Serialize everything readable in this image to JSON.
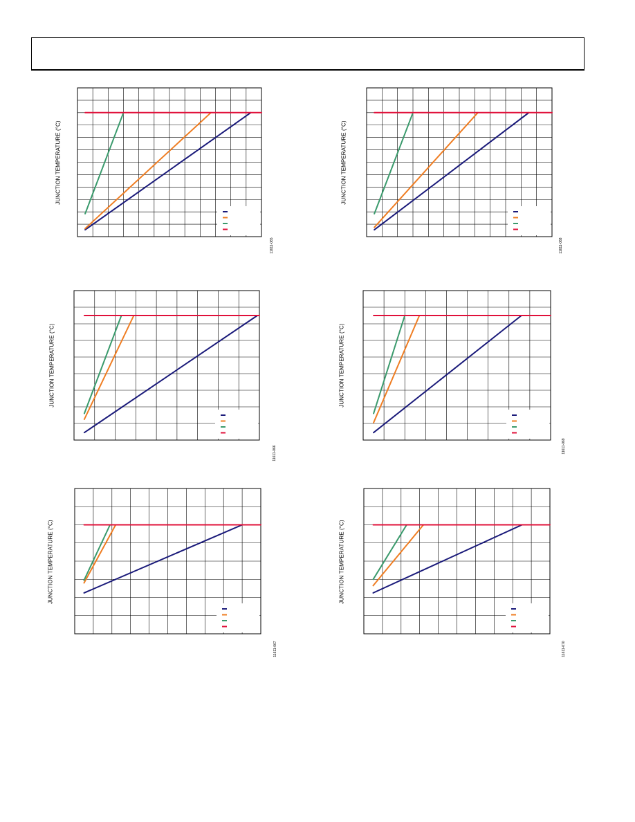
{
  "page": {
    "header": ""
  },
  "colors": {
    "blue": "#1a1a7a",
    "orange": "#ef7d22",
    "green": "#3a9a6c",
    "red": "#e0103a",
    "grid": "#000000"
  },
  "chart_data": [
    {
      "type": "line",
      "ylabel": "JUNCTION TEMPERATURE (°C)",
      "figure_code": "11611-065",
      "grid": true,
      "xlim": [
        0,
        12
      ],
      "ylim": [
        0,
        12
      ],
      "legend_position": "bottom-right",
      "series": [
        {
          "color_key": "blue",
          "x": [
            0.5,
            11.3
          ],
          "y": [
            0.55,
            10
          ]
        },
        {
          "color_key": "orange",
          "x": [
            0.5,
            8.7
          ],
          "y": [
            0.65,
            10
          ]
        },
        {
          "color_key": "green",
          "x": [
            0.5,
            3.0
          ],
          "y": [
            1.85,
            10
          ]
        },
        {
          "color_key": "red",
          "x": [
            0.5,
            12
          ],
          "y": [
            10,
            10
          ]
        }
      ]
    },
    {
      "type": "line",
      "ylabel": "JUNCTION TEMPERATURE (°C)",
      "figure_code": "11611-068",
      "grid": true,
      "xlim": [
        0,
        12
      ],
      "ylim": [
        0,
        12
      ],
      "legend_position": "bottom-right",
      "series": [
        {
          "color_key": "blue",
          "x": [
            0.5,
            10.5
          ],
          "y": [
            0.55,
            10
          ]
        },
        {
          "color_key": "orange",
          "x": [
            0.5,
            7.2
          ],
          "y": [
            0.75,
            10
          ]
        },
        {
          "color_key": "green",
          "x": [
            0.5,
            3.0
          ],
          "y": [
            1.85,
            10
          ]
        },
        {
          "color_key": "red",
          "x": [
            0.5,
            12
          ],
          "y": [
            10,
            10
          ]
        }
      ]
    },
    {
      "type": "line",
      "ylabel": "JUNCTION TEMPERATURE (°C)",
      "figure_code": "11611-066",
      "grid": true,
      "xlim": [
        0,
        9
      ],
      "ylim": [
        0,
        9
      ],
      "legend_position": "bottom-right",
      "series": [
        {
          "color_key": "blue",
          "x": [
            0.5,
            8.9
          ],
          "y": [
            0.45,
            7.5
          ]
        },
        {
          "color_key": "orange",
          "x": [
            0.5,
            1.9,
            2.9
          ],
          "y": [
            1.25,
            4.9,
            7.5
          ]
        },
        {
          "color_key": "green",
          "x": [
            0.5,
            2.3
          ],
          "y": [
            1.6,
            7.5
          ]
        },
        {
          "color_key": "red",
          "x": [
            0.5,
            9
          ],
          "y": [
            7.5,
            7.5
          ]
        }
      ]
    },
    {
      "type": "line",
      "ylabel": "JUNCTION TEMPERATURE (°C)",
      "figure_code": "11611-069",
      "grid": true,
      "xlim": [
        0,
        9
      ],
      "ylim": [
        0,
        9
      ],
      "legend_position": "bottom-right",
      "series": [
        {
          "color_key": "blue",
          "x": [
            0.5,
            7.6
          ],
          "y": [
            0.45,
            7.5
          ]
        },
        {
          "color_key": "orange",
          "x": [
            0.5,
            2.7
          ],
          "y": [
            1.05,
            7.5
          ]
        },
        {
          "color_key": "green",
          "x": [
            0.5,
            2.0
          ],
          "y": [
            1.6,
            7.5
          ]
        },
        {
          "color_key": "red",
          "x": [
            0.5,
            9
          ],
          "y": [
            7.5,
            7.5
          ]
        }
      ]
    },
    {
      "type": "line",
      "ylabel": "JUNCTION TEMPERATURE (°C)",
      "figure_code": "11611-067",
      "grid": true,
      "xlim": [
        0,
        10
      ],
      "ylim": [
        0,
        8
      ],
      "legend_position": "bottom-right",
      "series": [
        {
          "color_key": "blue",
          "x": [
            0.5,
            9.0
          ],
          "y": [
            2.25,
            6.0
          ]
        },
        {
          "color_key": "orange",
          "x": [
            0.5,
            2.2
          ],
          "y": [
            2.8,
            6.0
          ]
        },
        {
          "color_key": "green",
          "x": [
            0.5,
            1.9
          ],
          "y": [
            2.95,
            6.0
          ]
        },
        {
          "color_key": "red",
          "x": [
            0.5,
            10
          ],
          "y": [
            6.0,
            6.0
          ]
        }
      ]
    },
    {
      "type": "line",
      "ylabel": "JUNCTION TEMPERATURE (°C)",
      "figure_code": "11611-070",
      "grid": true,
      "xlim": [
        0,
        10
      ],
      "ylim": [
        0,
        8
      ],
      "legend_position": "bottom-right",
      "series": [
        {
          "color_key": "blue",
          "x": [
            0.5,
            8.5
          ],
          "y": [
            2.25,
            6.0
          ]
        },
        {
          "color_key": "orange",
          "x": [
            0.5,
            3.2
          ],
          "y": [
            2.65,
            6.0
          ]
        },
        {
          "color_key": "green",
          "x": [
            0.5,
            2.3
          ],
          "y": [
            3.0,
            6.0
          ]
        },
        {
          "color_key": "red",
          "x": [
            0.5,
            10
          ],
          "y": [
            6.0,
            6.0
          ]
        }
      ]
    }
  ]
}
